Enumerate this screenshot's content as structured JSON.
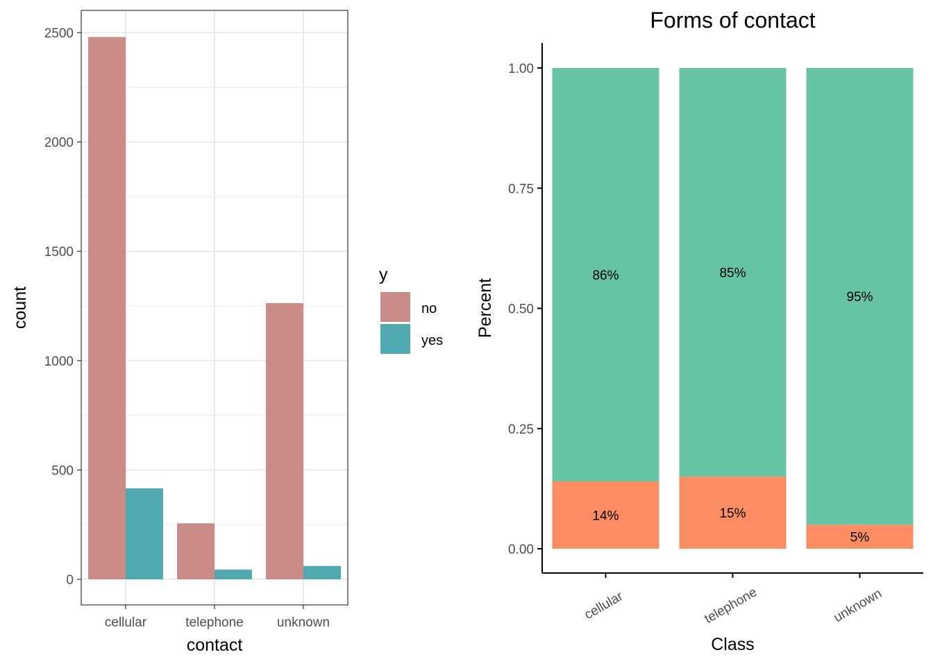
{
  "colors": {
    "no": "#C98C89",
    "yes": "#50A9B0",
    "pct_top": "#66C3A5",
    "pct_bottom": "#FC8D62",
    "grid": "#EBEBEB",
    "axis": "#000000",
    "tick_text": "#4D4D4D"
  },
  "chart_data": [
    {
      "type": "bar",
      "title": "",
      "xlabel": "contact",
      "ylabel": "count",
      "ylim": [
        0,
        2500
      ],
      "yticks": [
        "0",
        "500",
        "1000",
        "1500",
        "2000",
        "2500"
      ],
      "ytick_values": [
        0,
        500,
        1000,
        1500,
        2000,
        2500
      ],
      "categories": [
        "cellular",
        "telephone",
        "unknown"
      ],
      "series": [
        {
          "name": "no",
          "values": [
            2480,
            256,
            1263
          ]
        },
        {
          "name": "yes",
          "values": [
            416,
            44,
            61
          ]
        }
      ],
      "legend": {
        "title": "y",
        "position": "right",
        "entries": [
          "no",
          "yes"
        ]
      },
      "grid": true
    },
    {
      "type": "bar",
      "stacked": true,
      "title": "Forms of contact",
      "xlabel": "Class",
      "ylabel": "Percent",
      "ylim": [
        0,
        1
      ],
      "yticks": [
        "0.00",
        "0.25",
        "0.50",
        "0.75",
        "1.00"
      ],
      "ytick_values": [
        0,
        0.25,
        0.5,
        0.75,
        1.0
      ],
      "categories": [
        "cellular",
        "telephone",
        "unknown"
      ],
      "series": [
        {
          "values": [
            0.14,
            0.15,
            0.05
          ],
          "labels": [
            "14%",
            "15%",
            "5%"
          ]
        },
        {
          "values": [
            0.86,
            0.85,
            0.95
          ],
          "labels": [
            "86%",
            "85%",
            "95%"
          ]
        }
      ],
      "grid": false
    }
  ]
}
